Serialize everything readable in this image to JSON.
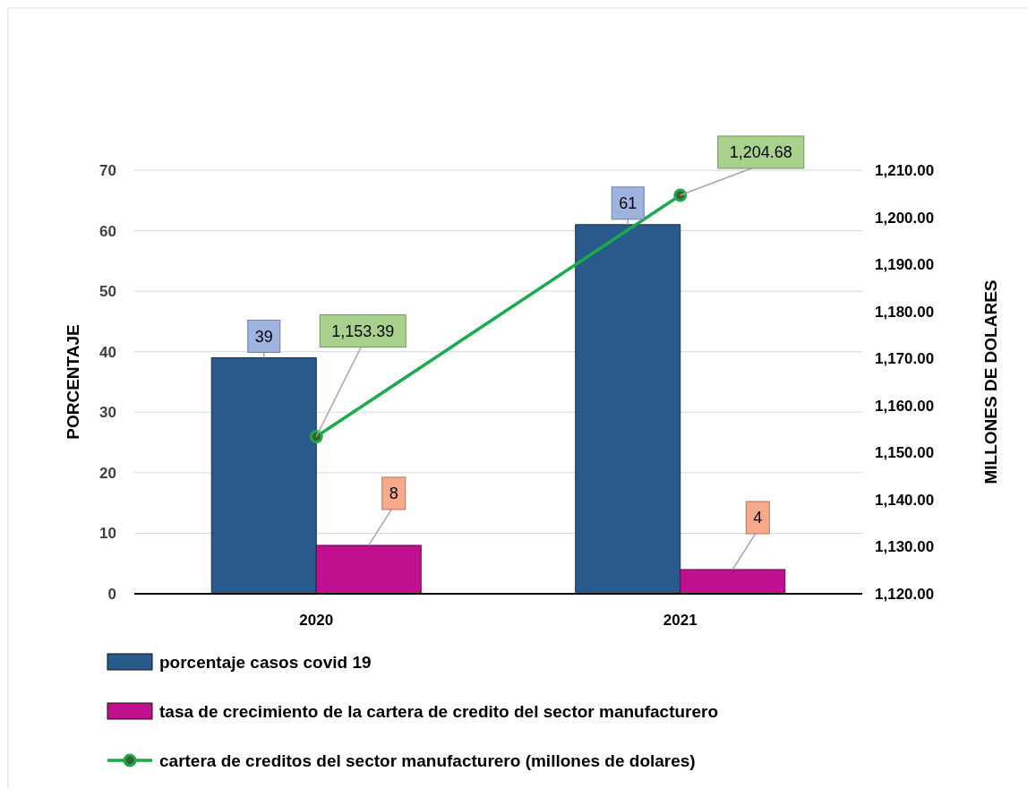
{
  "chart_data": {
    "type": "bar",
    "categories": [
      "2020",
      "2021"
    ],
    "series": [
      {
        "name": "porcentaje casos covid 19",
        "color": "#2a5a8c",
        "values": [
          39,
          61
        ],
        "value_labels": [
          "39",
          "61"
        ]
      },
      {
        "name": "tasa de crecimiento de la cartera de credito del sector manufacturero",
        "color": "#c0108f",
        "values": [
          8,
          4
        ],
        "value_labels": [
          "8",
          "4"
        ]
      },
      {
        "name": "cartera de creditos del sector manufacturero (millones de dolares)",
        "type": "line",
        "axis": "y2",
        "color": "#1aab4a",
        "marker": "circle",
        "values": [
          1153.39,
          1204.68
        ],
        "value_labels": [
          "1,153.39",
          "1,204.68"
        ]
      }
    ],
    "ylabel": "PORCENTAJE",
    "y2label": "MILLONES DE DOLARES",
    "ylim": [
      0,
      70
    ],
    "yticks": [
      0,
      10,
      20,
      30,
      40,
      50,
      60,
      70
    ],
    "y2lim": [
      1120,
      1210
    ],
    "y2ticks": [
      {
        "value": 1120,
        "label": "1,120.00"
      },
      {
        "value": 1130,
        "label": "1,130.00"
      },
      {
        "value": 1140,
        "label": "1,140.00"
      },
      {
        "value": 1150,
        "label": "1,150.00"
      },
      {
        "value": 1160,
        "label": "1,160.00"
      },
      {
        "value": 1170,
        "label": "1,170.00"
      },
      {
        "value": 1180,
        "label": "1,180.00"
      },
      {
        "value": 1190,
        "label": "1,190.00"
      },
      {
        "value": 1200,
        "label": "1,200.00"
      },
      {
        "value": 1210,
        "label": "1,210.00"
      }
    ],
    "grid": "y",
    "legend": "bottom"
  }
}
